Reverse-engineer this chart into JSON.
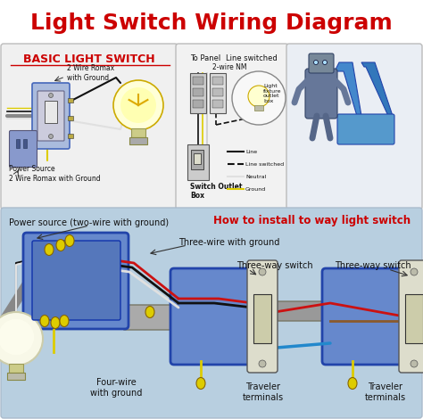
{
  "title": "Light Switch Wiring Diagram",
  "title_color": "#cc0000",
  "title_fontsize": 18,
  "bg_color": "#ffffff",
  "top_left_label": "BASIC LIGHT SWITCH",
  "top_left_label_color": "#cc0000",
  "bottom_subtitle": "How to install to way light switch",
  "bottom_subtitle_color": "#cc0000",
  "top_box_bg": "#f0f0f0",
  "top_box_edge": "#cccccc",
  "bottom_bg": "#b8cfe0",
  "wire_black": "#111111",
  "wire_white": "#e0e0e0",
  "wire_red": "#cc1111",
  "wire_blue": "#2288cc",
  "wire_yellow": "#ddcc00",
  "wire_gray": "#888888",
  "wire_brown": "#8b5a2b",
  "box_blue_face": "#5588cc",
  "box_blue_edge": "#2244aa",
  "switch_face": "#ddddc8",
  "switch_edge": "#333333",
  "bulb_face": "#ffffd0",
  "bulb_edge": "#ccaa00",
  "legend_items": [
    {
      "label": "Line",
      "style": "solid",
      "color": "#111111"
    },
    {
      "label": "Line switched",
      "style": "dashed",
      "color": "#111111"
    },
    {
      "label": "Neutral",
      "style": "solid",
      "color": "#e0e0e0"
    },
    {
      "label": "Ground",
      "style": "solid",
      "color": "#ddcc00"
    }
  ]
}
